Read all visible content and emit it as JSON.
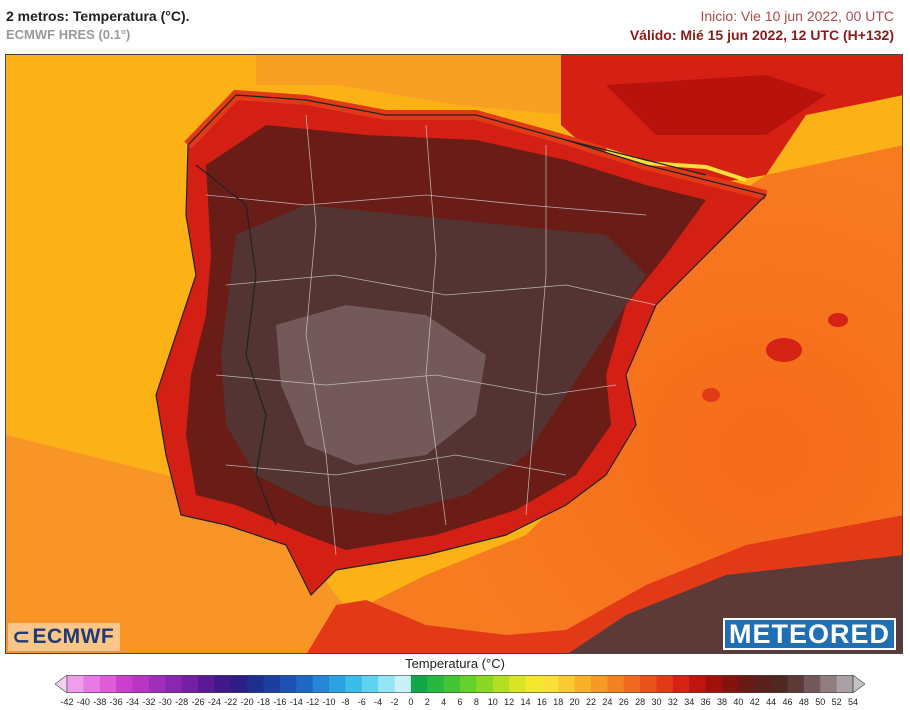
{
  "header": {
    "title": "2 metros: Temperatura (°C).",
    "model": "ECMWF HRES (0.1°)",
    "init": "Inicio: Vie 10 jun 2022, 00 UTC",
    "valid": "Válido: Mié 15 jun 2022, 12 UTC (H+132)"
  },
  "logos": {
    "ecmwf": "ECMWF",
    "meteored": "METEORED"
  },
  "colorbar": {
    "title": "Temperatura (°C)",
    "labels": [
      "-42",
      "-40",
      "-38",
      "-36",
      "-34",
      "-32",
      "-30",
      "-28",
      "-26",
      "-24",
      "-22",
      "-20",
      "-18",
      "-16",
      "-14",
      "-12",
      "-10",
      "-8",
      "-6",
      "-4",
      "-2",
      "0",
      "2",
      "4",
      "6",
      "8",
      "10",
      "12",
      "14",
      "16",
      "18",
      "20",
      "22",
      "24",
      "26",
      "28",
      "30",
      "32",
      "34",
      "36",
      "38",
      "40",
      "42",
      "44",
      "46",
      "48",
      "50",
      "52",
      "54"
    ],
    "colors": [
      "#f3d1ee",
      "#ee9eea",
      "#e97ae3",
      "#de5cd8",
      "#cc3fcc",
      "#b935c4",
      "#a12dbb",
      "#8a27b0",
      "#7320a3",
      "#5c1996",
      "#3f1a88",
      "#2b1f86",
      "#1d2f8f",
      "#1a3f9f",
      "#1c52b3",
      "#1f67c4",
      "#2585d6",
      "#2ba3e1",
      "#3abde6",
      "#5fd2ee",
      "#93e4f4",
      "#c8f2f8",
      "#11a84a",
      "#27b840",
      "#43c634",
      "#65d22a",
      "#8ad824",
      "#b2df23",
      "#d8e426",
      "#f5e82c",
      "#fce03a",
      "#fbc930",
      "#f9b12a",
      "#f79a25",
      "#f38221",
      "#ef6a1e",
      "#ea511b",
      "#e23a17",
      "#d42214",
      "#c0140f",
      "#a2100c",
      "#84120e",
      "#691a15",
      "#5a201c",
      "#4f2824",
      "#5c3a37",
      "#74595a",
      "#8f7d80",
      "#aaa0a5",
      "#c6c1c5"
    ]
  }
}
